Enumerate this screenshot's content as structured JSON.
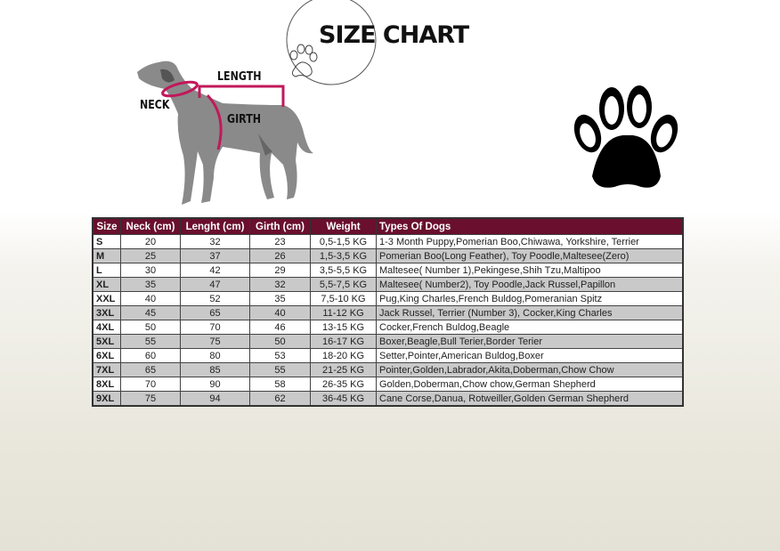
{
  "title": "SIZE CHART",
  "diagram_labels": {
    "neck": "NECK",
    "length": "LENGTH",
    "girth": "GIRTH"
  },
  "colors": {
    "header": "#6a0f2e",
    "measure": "#c2185b",
    "dog": "#8a8a8a"
  },
  "table": {
    "headers": [
      "Size",
      "Neck (cm)",
      "Lenght (cm)",
      "Girth (cm)",
      "Weight",
      "Types Of Dogs"
    ],
    "rows": [
      [
        "S",
        "20",
        "32",
        "23",
        "0,5-1,5 KG",
        "1-3 Month Puppy,Pomerian Boo,Chiwawa, Yorkshire, Terrier"
      ],
      [
        "M",
        "25",
        "37",
        "26",
        "1,5-3,5 KG",
        "Pomerian Boo(Long Feather), Toy Poodle,Maltesee(Zero)"
      ],
      [
        "L",
        "30",
        "42",
        "29",
        "3,5-5,5 KG",
        "Maltesee( Number 1),Pekingese,Shih Tzu,Maltipoo"
      ],
      [
        "XL",
        "35",
        "47",
        "32",
        "5,5-7,5 KG",
        "Maltesee( Number2), Toy Poodle,Jack Russel,Papillon"
      ],
      [
        "XXL",
        "40",
        "52",
        "35",
        "7,5-10 KG",
        "Pug,King Charles,French Buldog,Pomeranian Spitz"
      ],
      [
        "3XL",
        "45",
        "65",
        "40",
        "11-12 KG",
        "Jack Russel, Terrier (Number 3), Cocker,King Charles"
      ],
      [
        "4XL",
        "50",
        "70",
        "46",
        "13-15 KG",
        "Cocker,French Buldog,Beagle"
      ],
      [
        "5XL",
        "55",
        "75",
        "50",
        "16-17 KG",
        "Boxer,Beagle,Bull Terier,Border Terier"
      ],
      [
        "6XL",
        "60",
        "80",
        "53",
        "18-20 KG",
        "Setter,Pointer,American Buldog,Boxer"
      ],
      [
        "7XL",
        "65",
        "85",
        "55",
        "21-25 KG",
        "Pointer,Golden,Labrador,Akita,Doberman,Chow Chow"
      ],
      [
        "8XL",
        "70",
        "90",
        "58",
        "26-35 KG",
        "Golden,Doberman,Chow chow,German Shepherd"
      ],
      [
        "9XL",
        "75",
        "94",
        "62",
        "36-45 KG",
        "Cane Corse,Danua, Rotweiller,Golden German Shepherd"
      ]
    ]
  }
}
